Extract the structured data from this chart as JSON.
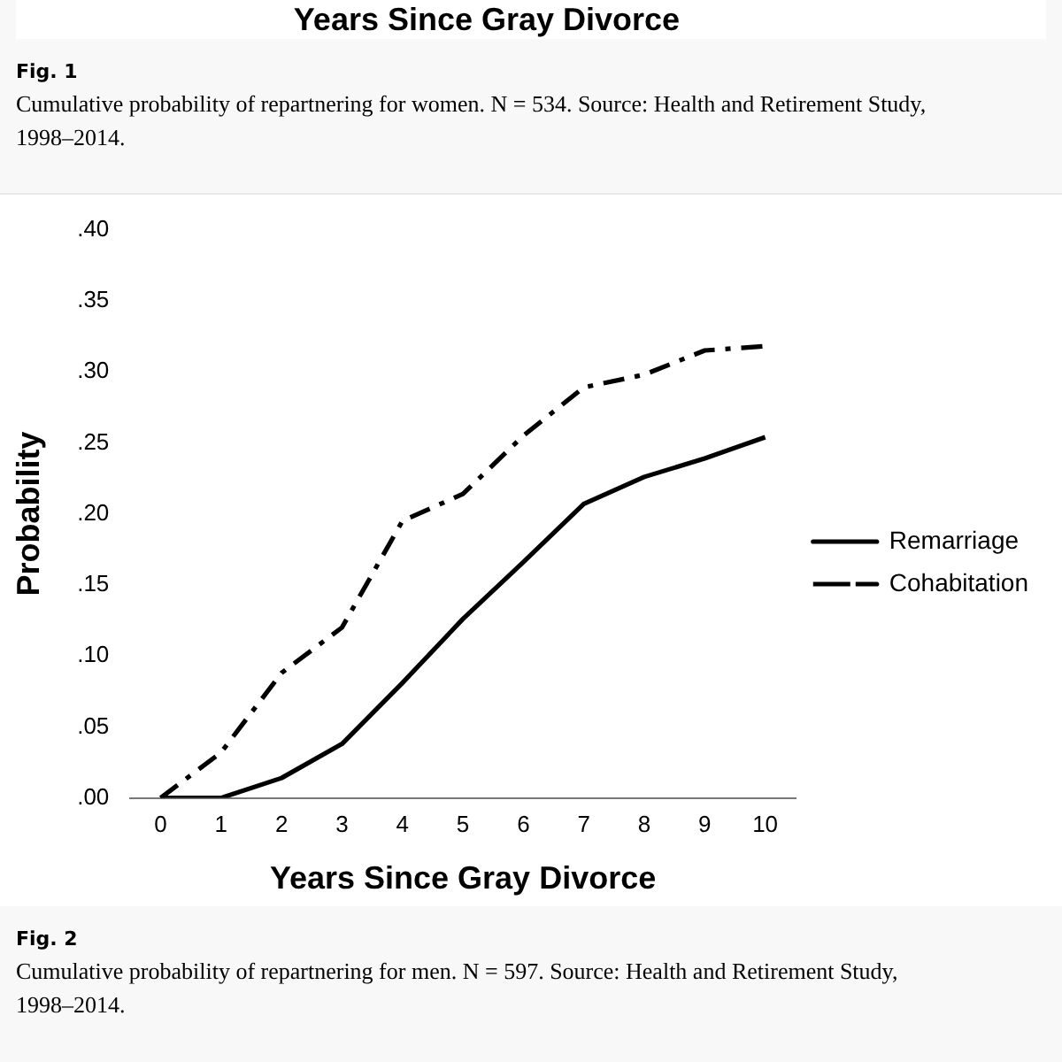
{
  "chart_data": {
    "type": "line",
    "xlabel": "Years Since Gray Divorce",
    "ylabel": "Probability",
    "categories": [
      "0",
      "1",
      "2",
      "3",
      "4",
      "5",
      "6",
      "7",
      "8",
      "9",
      "10"
    ],
    "series": [
      {
        "name": "Remarriage",
        "color": "#000000",
        "line_style": "solid",
        "values": [
          0,
          0,
          0.014,
          0.038,
          0.081,
          0.126,
          0.166,
          0.207,
          0.226,
          0.239,
          0.254
        ]
      },
      {
        "name": "Cohabitation",
        "color": "#000000",
        "line_style": "dashed",
        "values": [
          0,
          0.032,
          0.088,
          0.12,
          0.195,
          0.214,
          0.255,
          0.289,
          0.298,
          0.315,
          0.318
        ]
      }
    ],
    "ylim": [
      0,
      0.4
    ],
    "yticks": [
      {
        "value": 0,
        "label": ".00"
      },
      {
        "value": 0.05,
        "label": ".05"
      },
      {
        "value": 0.1,
        "label": ".10"
      },
      {
        "value": 0.15,
        "label": ".15"
      },
      {
        "value": 0.2,
        "label": ".20"
      },
      {
        "value": 0.25,
        "label": ".25"
      },
      {
        "value": 0.3,
        "label": ".30"
      },
      {
        "value": 0.35,
        "label": ".35"
      },
      {
        "value": 0.4,
        "label": ".40"
      }
    ],
    "grid": false,
    "legend": "right",
    "marker": "none",
    "annotations": [
      "Years Since Gray Divorce",
      "Fig. 1",
      "Cumulative probability of repartnering for women. N = 534. Source: Health and Retirement Study, 1998–2014.",
      "Fig. 2",
      "Cumulative probability of repartnering for men. N = 597. Source: Health and Retirement Study, 1998–2014."
    ]
  }
}
